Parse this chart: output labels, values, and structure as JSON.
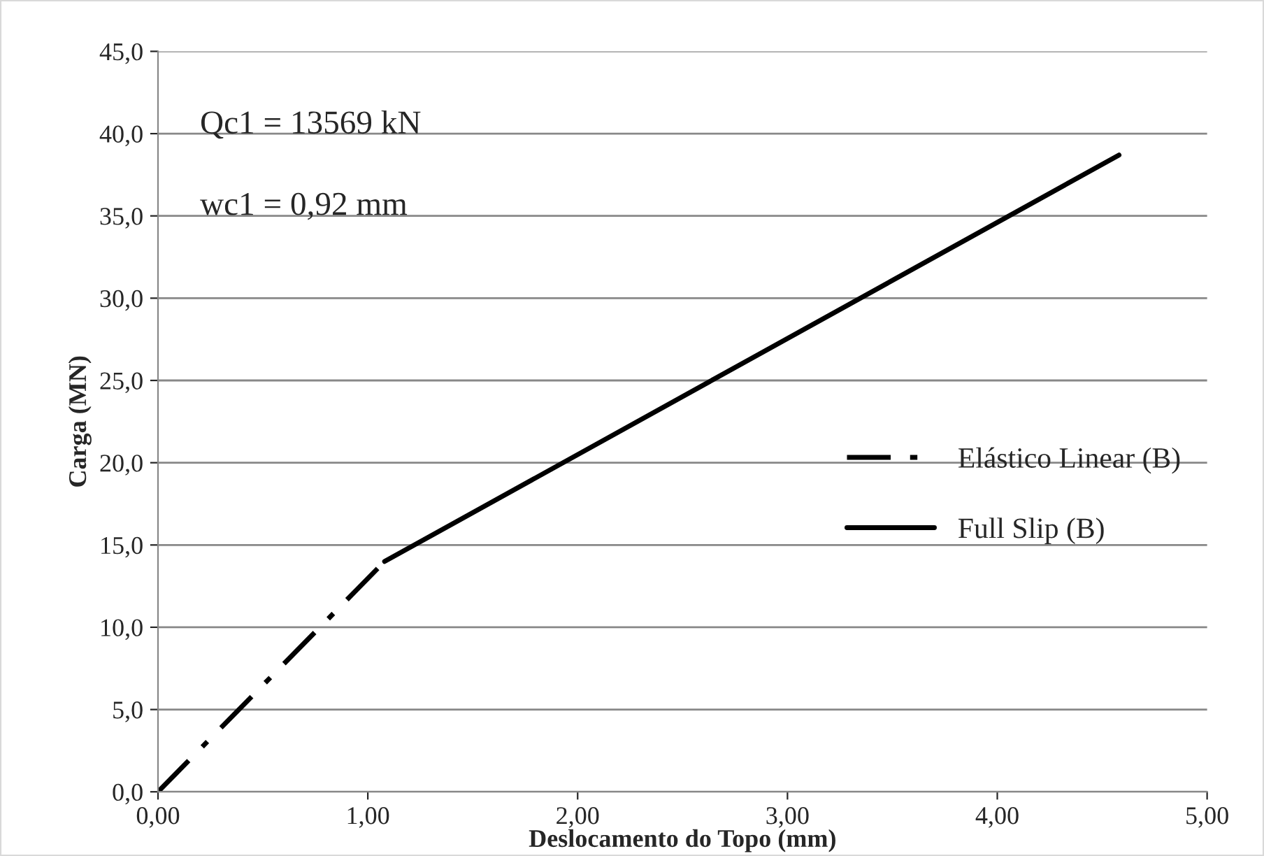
{
  "chart_data": {
    "type": "line",
    "xlabel": "Deslocamento do Topo (mm)",
    "ylabel": "Carga (MN)",
    "annotations": [
      "Qc1 = 13569 kN",
      "wc1 = 0,92 mm"
    ],
    "series": [
      {
        "name": "Elástico Linear (B)",
        "color": "#000000",
        "line_style": "dashdot",
        "x": [
          0,
          1.08
        ],
        "values": [
          0,
          14.0
        ]
      },
      {
        "name": "Full Slip (B)",
        "color": "#000000",
        "line_style": "solid",
        "x": [
          1.08,
          4.58
        ],
        "values": [
          14.0,
          38.7
        ]
      }
    ],
    "xlim": [
      0,
      5
    ],
    "ylim": [
      0,
      45
    ],
    "xticks": [
      {
        "value": 0,
        "label": "0,00"
      },
      {
        "value": 1,
        "label": "1,00"
      },
      {
        "value": 2,
        "label": "2,00"
      },
      {
        "value": 3,
        "label": "3,00"
      },
      {
        "value": 4,
        "label": "4,00"
      },
      {
        "value": 5,
        "label": "5,00"
      }
    ],
    "yticks": [
      {
        "value": 0,
        "label": "0,0"
      },
      {
        "value": 5,
        "label": "5,0"
      },
      {
        "value": 10,
        "label": "10,0"
      },
      {
        "value": 15,
        "label": "15,0"
      },
      {
        "value": 20,
        "label": "20,0"
      },
      {
        "value": 25,
        "label": "25,0"
      },
      {
        "value": 30,
        "label": "30,0"
      },
      {
        "value": 35,
        "label": "35,0"
      },
      {
        "value": 40,
        "label": "40,0"
      },
      {
        "value": 45,
        "label": "45,0"
      }
    ],
    "grid": "y",
    "legend": "right",
    "marker": "none"
  }
}
